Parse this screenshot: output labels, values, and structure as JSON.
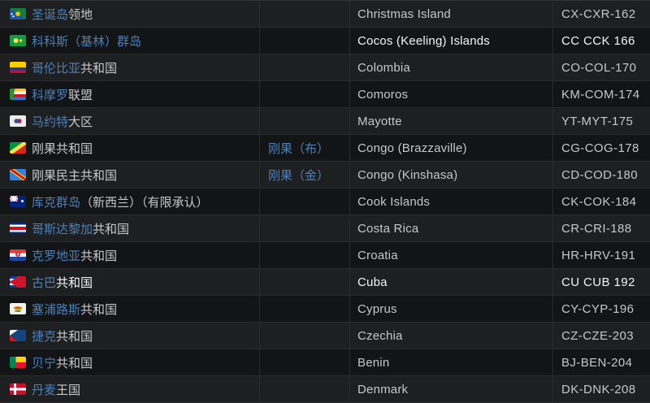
{
  "colors": {
    "link_blue": "#4d80b6",
    "text_gray": "#c6c7c9",
    "text_highlight_white": "#f4f4f4",
    "row_bg_light": "#1e1f21",
    "row_bg_dark": "#131415",
    "border": "#2a2b2d"
  },
  "table": {
    "rows": [
      {
        "flag": "christmas-island",
        "name_link": "圣诞岛",
        "name_rest": "领地",
        "alias": "",
        "english": "Christmas Island",
        "code": "CX-CXR-162",
        "highlight": false
      },
      {
        "flag": "cocos-keeling-islands",
        "name_link": "科科斯（基林）群岛",
        "name_rest": "",
        "alias": "",
        "english": "Cocos (Keeling) Islands",
        "code": "CC CCK 166",
        "highlight": true
      },
      {
        "flag": "colombia",
        "name_link": "哥伦比亚",
        "name_rest": "共和国",
        "alias": "",
        "english": "Colombia",
        "code": "CO-COL-170",
        "highlight": false
      },
      {
        "flag": "comoros",
        "name_link": "科摩罗",
        "name_rest": "联盟",
        "alias": "",
        "english": "Comoros",
        "code": "KM-COM-174",
        "highlight": false
      },
      {
        "flag": "mayotte",
        "name_link": "马约特",
        "name_rest": "大区",
        "alias": "",
        "english": "Mayotte",
        "code": "YT-MYT-175",
        "highlight": false
      },
      {
        "flag": "congo-brazzaville",
        "name_link": "",
        "name_rest": "刚果共和国",
        "alias": "刚果（布）",
        "english": "Congo (Brazzaville)",
        "code": "CG-COG-178",
        "highlight": false
      },
      {
        "flag": "congo-kinshasa",
        "name_link": "",
        "name_rest": "刚果民主共和国",
        "alias": "刚果（金）",
        "english": "Congo (Kinshasa)",
        "code": "CD-COD-180",
        "highlight": false
      },
      {
        "flag": "cook-islands",
        "name_link": "库克群岛",
        "name_rest": "（新西兰）（有限承认）",
        "alias": "",
        "english": "Cook Islands",
        "code": "CK-COK-184",
        "highlight": false
      },
      {
        "flag": "costa-rica",
        "name_link": "哥斯达黎加",
        "name_rest": "共和国",
        "alias": "",
        "english": "Costa Rica",
        "code": "CR-CRI-188",
        "highlight": false
      },
      {
        "flag": "croatia",
        "name_link": "克罗地亚",
        "name_rest": "共和国",
        "alias": "",
        "english": "Croatia",
        "code": "HR-HRV-191",
        "highlight": false
      },
      {
        "flag": "cuba",
        "name_link": "古巴",
        "name_rest": "共和国",
        "alias": "",
        "english": "Cuba",
        "code": "CU CUB 192",
        "highlight": true
      },
      {
        "flag": "cyprus",
        "name_link": "塞浦路斯",
        "name_rest": "共和国",
        "alias": "",
        "english": "Cyprus",
        "code": "CY-CYP-196",
        "highlight": false
      },
      {
        "flag": "czechia",
        "name_link": "捷克",
        "name_rest": "共和国",
        "alias": "",
        "english": "Czechia",
        "code": "CZ-CZE-203",
        "highlight": false
      },
      {
        "flag": "benin",
        "name_link": "贝宁",
        "name_rest": "共和国",
        "alias": "",
        "english": "Benin",
        "code": "BJ-BEN-204",
        "highlight": false
      },
      {
        "flag": "denmark",
        "name_link": "丹麦",
        "name_rest": "王国",
        "alias": "",
        "english": "Denmark",
        "code": "DK-DNK-208",
        "highlight": false
      }
    ]
  }
}
